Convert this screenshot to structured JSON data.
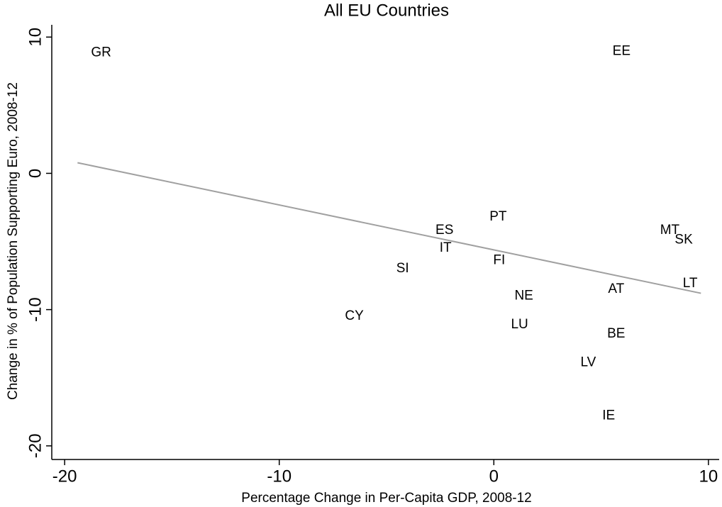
{
  "chart_data": {
    "type": "scatter",
    "title": "All EU Countries",
    "x_label": "Percentage Change in Per-Capita GDP, 2008-12",
    "y_label": "Change in % of Population Supporting Euro, 2008-12",
    "xlim": [
      -20.6,
      10.5
    ],
    "ylim": [
      -21,
      10.9
    ],
    "xticks": [
      -20,
      -10,
      0,
      10
    ],
    "yticks": [
      -20,
      -10,
      0,
      10
    ],
    "labels": [
      "GR",
      "EE",
      "PT",
      "ES",
      "IT",
      "MT",
      "SK",
      "FI",
      "SI",
      "LT",
      "AT",
      "NE",
      "CY",
      "LU",
      "BE",
      "LV",
      "IE"
    ],
    "x": [
      -18.3,
      5.95,
      0.2,
      -2.3,
      -2.25,
      8.2,
      8.85,
      0.25,
      -4.25,
      9.15,
      5.7,
      1.4,
      -6.5,
      1.2,
      5.7,
      4.4,
      5.35
    ],
    "y": [
      8.85,
      8.96,
      -3.2,
      -4.2,
      -5.5,
      -4.2,
      -4.9,
      -6.4,
      -7.0,
      -8.1,
      -8.5,
      -9.0,
      -10.5,
      -11.1,
      -11.8,
      -13.9,
      -17.8
    ],
    "fit_line": {
      "color": "#a0a0a0",
      "x": [
        -19.4,
        9.65
      ],
      "y": [
        0.78,
        -8.8
      ]
    }
  }
}
